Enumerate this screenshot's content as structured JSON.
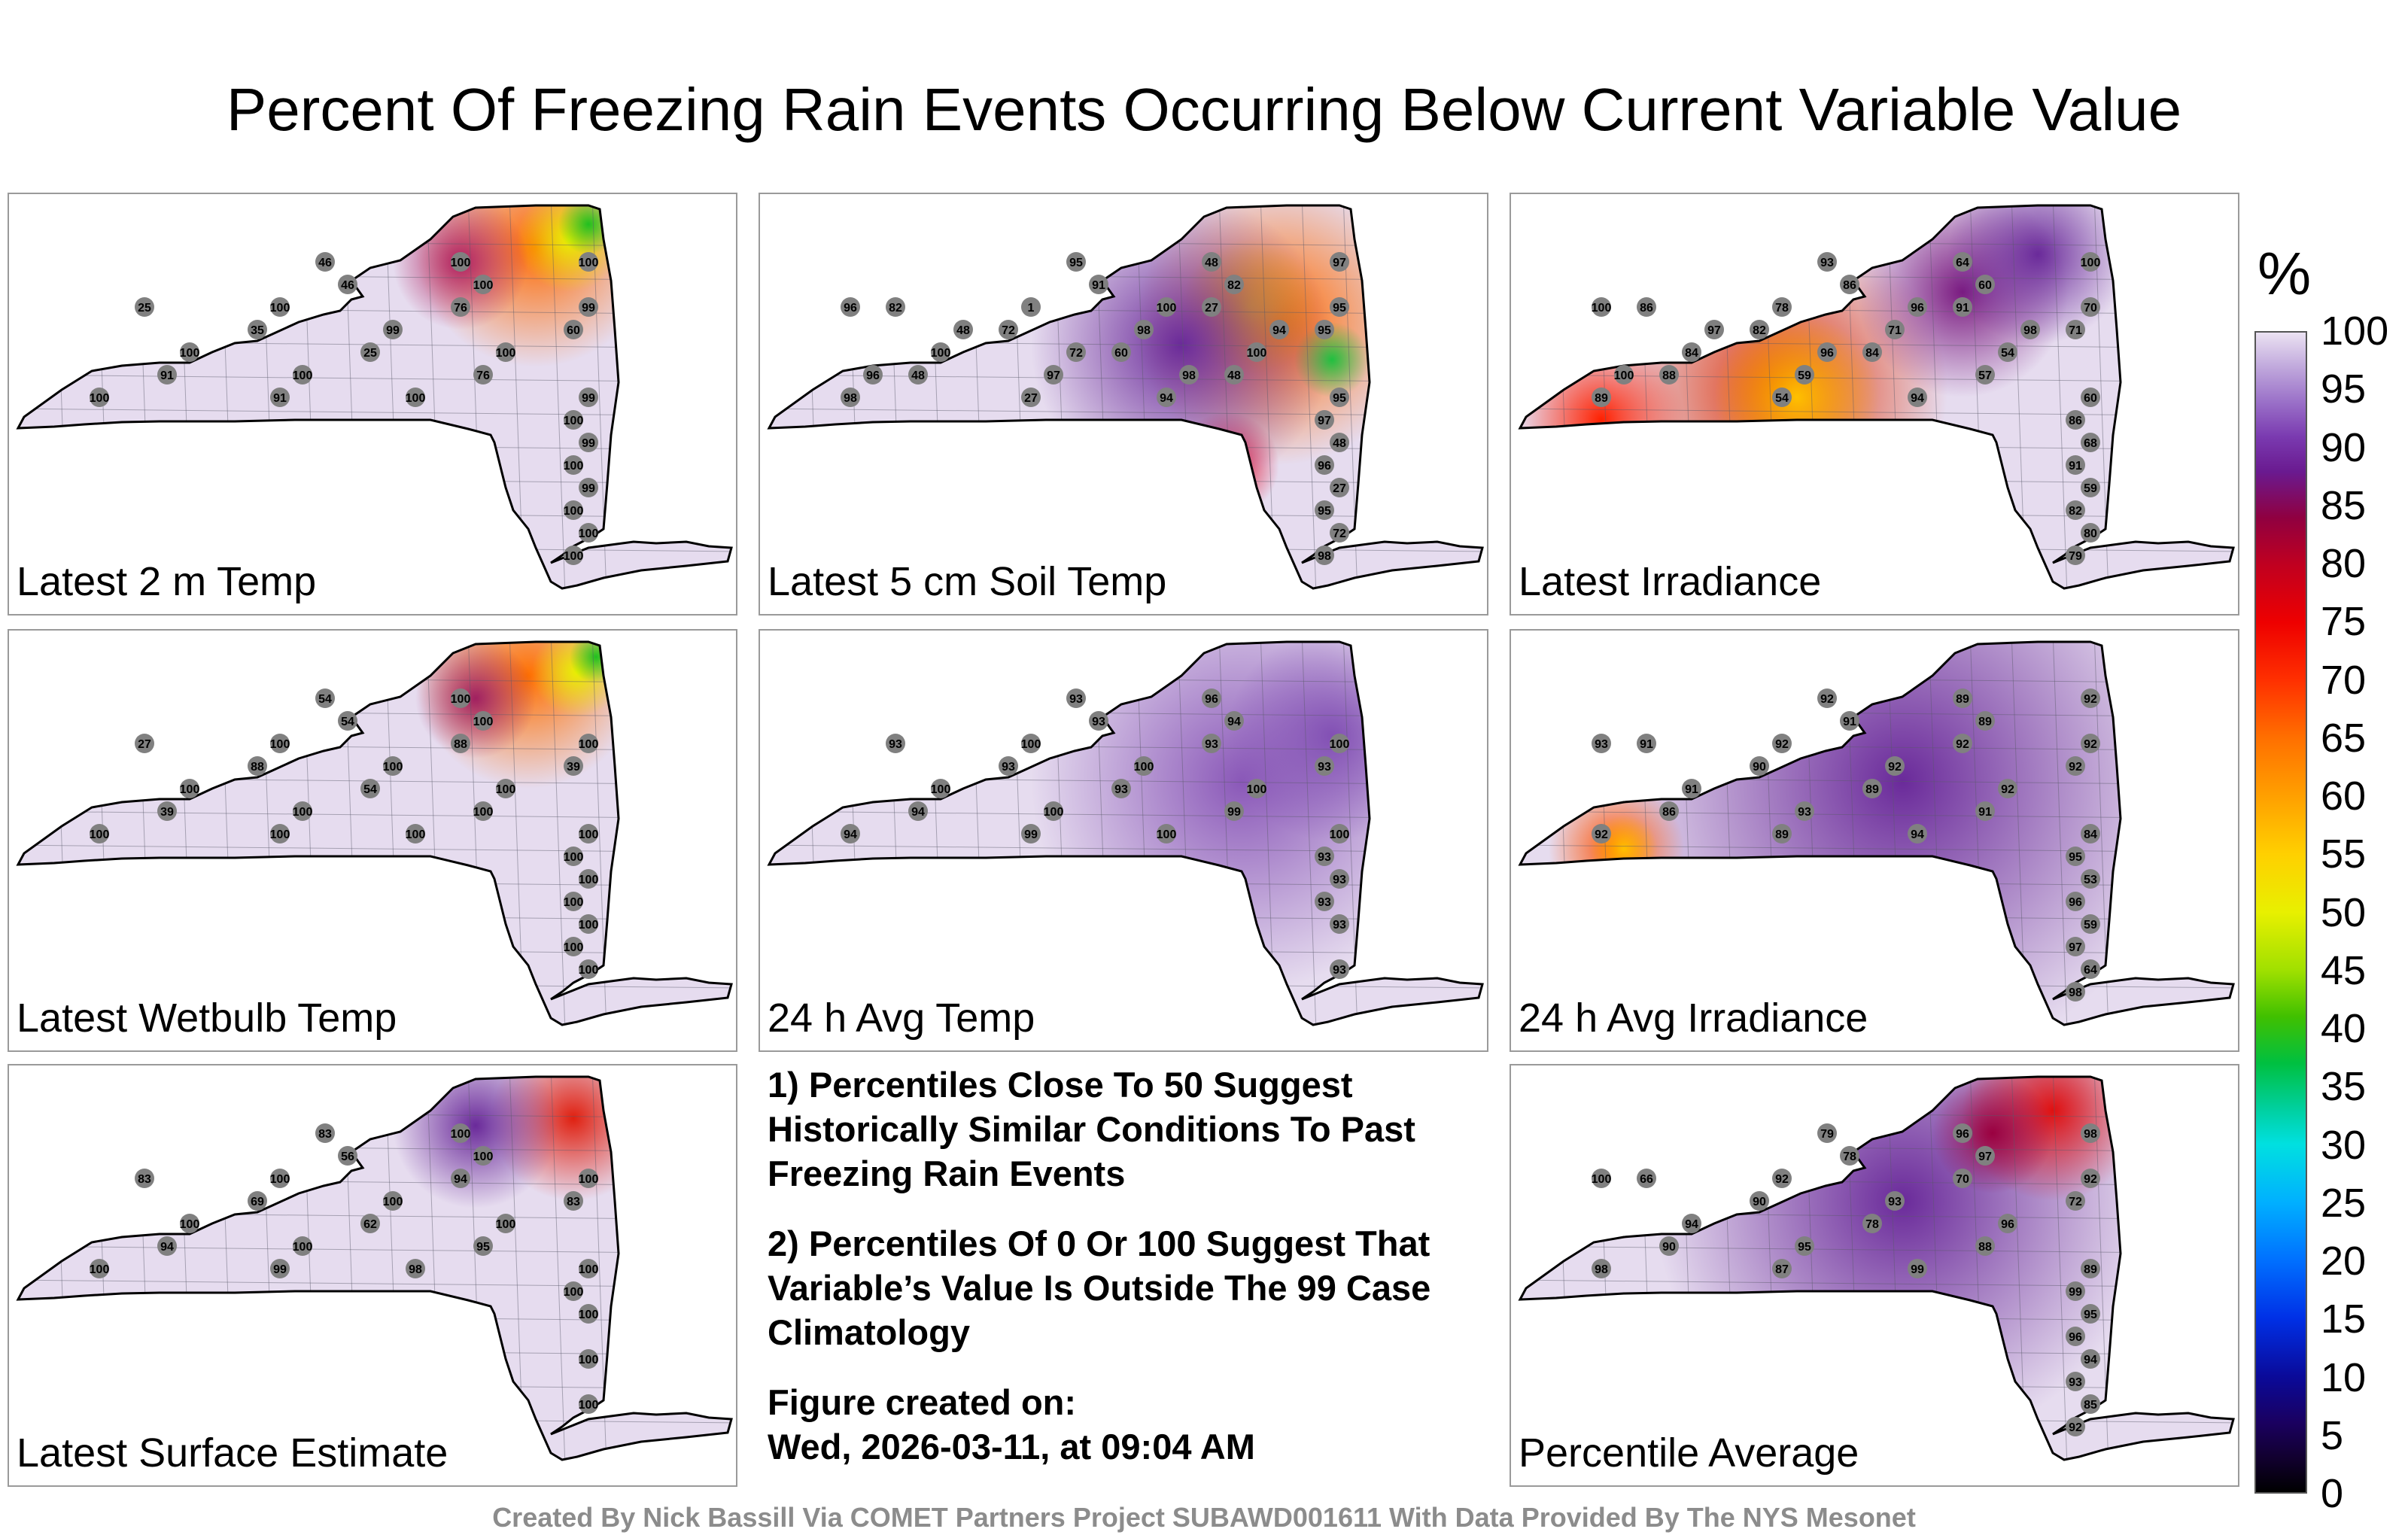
{
  "title": "Percent Of Freezing Rain Events Occurring Below Current Variable Value",
  "panels": [
    {
      "label": "Latest 2 m Temp",
      "scheme": "temp",
      "values": [
        "46",
        "46",
        "25",
        "76",
        "35",
        "60",
        "25",
        "91",
        "76",
        "91",
        "99",
        "99",
        "99",
        "100",
        "100",
        "100",
        "100",
        "99",
        "99",
        "100",
        "100",
        "100",
        "100",
        "100",
        "100",
        "100",
        "100",
        "100",
        "100"
      ]
    },
    {
      "label": "Latest 5 cm Soil Temp",
      "scheme": "soil",
      "values": [
        "95",
        "91",
        "82",
        "27",
        "72",
        "95",
        "60",
        "48",
        "48",
        "27",
        "95",
        "48",
        "27",
        "72",
        "48",
        "82",
        "1",
        "95",
        "98",
        "100",
        "100",
        "97",
        "98",
        "94",
        "97",
        "96",
        "95",
        "98",
        "97",
        "96",
        "100",
        "48",
        "94",
        "72",
        "96",
        "98"
      ]
    },
    {
      "label": "Latest Irradiance",
      "scheme": "irr",
      "values": [
        "93",
        "86",
        "86",
        "91",
        "82",
        "71",
        "84",
        "88",
        "57",
        "54",
        "60",
        "68",
        "59",
        "80",
        "64",
        "60",
        "78",
        "70",
        "71",
        "84",
        "54",
        "59",
        "89",
        "94",
        "86",
        "91",
        "82",
        "79",
        "100",
        "100",
        "96",
        "97",
        "98",
        "96",
        "100"
      ]
    },
    {
      "label": "Latest Wetbulb Temp",
      "scheme": "wet",
      "values": [
        "54",
        "54",
        "27",
        "88",
        "88",
        "39",
        "54",
        "39",
        "100",
        "100",
        "100",
        "100",
        "100",
        "100",
        "100",
        "100",
        "100",
        "100",
        "100",
        "100",
        "100",
        "100",
        "100",
        "100",
        "100",
        "100",
        "100"
      ]
    },
    {
      "label": "24 h Avg Temp",
      "scheme": "avg",
      "values": [
        "93",
        "93",
        "93",
        "93",
        "93",
        "93",
        "93",
        "94",
        "99",
        "99",
        "100",
        "93",
        "93",
        "93",
        "96",
        "94",
        "100",
        "100",
        "100",
        "100",
        "100",
        "100",
        "94",
        "100",
        "93",
        "93"
      ]
    },
    {
      "label": "24 h Avg Irradiance",
      "scheme": "avgirr",
      "values": [
        "92",
        "91",
        "91",
        "92",
        "90",
        "92",
        "89",
        "86",
        "91",
        "89",
        "84",
        "53",
        "59",
        "64",
        "89",
        "89",
        "92",
        "92",
        "92",
        "91",
        "92",
        "93",
        "92",
        "94",
        "95",
        "96",
        "97",
        "98",
        "92",
        "93"
      ]
    },
    {
      "label": "Latest Surface Estimate",
      "scheme": "surf",
      "values": [
        "83",
        "56",
        "83",
        "94",
        "69",
        "83",
        "62",
        "94",
        "95",
        "99",
        "100",
        "100",
        "100",
        "100",
        "100",
        "100",
        "100",
        "100",
        "100",
        "100",
        "100",
        "100",
        "100",
        "98",
        "100"
      ]
    },
    {
      "label": "Percentile Average",
      "scheme": "pavg",
      "values": [
        "79",
        "78",
        "66",
        "70",
        "90",
        "72",
        "78",
        "90",
        "88",
        "87",
        "89",
        "95",
        "94",
        "85",
        "96",
        "97",
        "92",
        "92",
        "93",
        "94",
        "96",
        "95",
        "98",
        "99",
        "99",
        "96",
        "93",
        "92",
        "98",
        "100"
      ]
    }
  ],
  "notes": [
    "1) Percentiles Close To 50 Suggest Historically Similar Conditions To Past Freezing Rain Events",
    "2) Percentiles Of 0 Or 100 Suggest That Variable’s Value Is Outside The 99 Case Climatology",
    "Figure created on:",
    "Wed, 2026-03-11, at 09:04 AM"
  ],
  "colorbar": {
    "unit": "%",
    "ticks": [
      "100",
      "95",
      "90",
      "85",
      "80",
      "75",
      "70",
      "65",
      "60",
      "55",
      "50",
      "45",
      "40",
      "35",
      "30",
      "25",
      "20",
      "15",
      "10",
      "5",
      "0"
    ],
    "min": 0,
    "max": 100
  },
  "credit": "Created By Nick Bassill Via COMET Partners Project SUBAWD001611 With Data Provided By The NYS Mesonet",
  "colors": {
    "background_fill": "#e6dcef",
    "state_outline": "#000000",
    "station_marker": "#808080",
    "frame": "#9a9a9a"
  }
}
